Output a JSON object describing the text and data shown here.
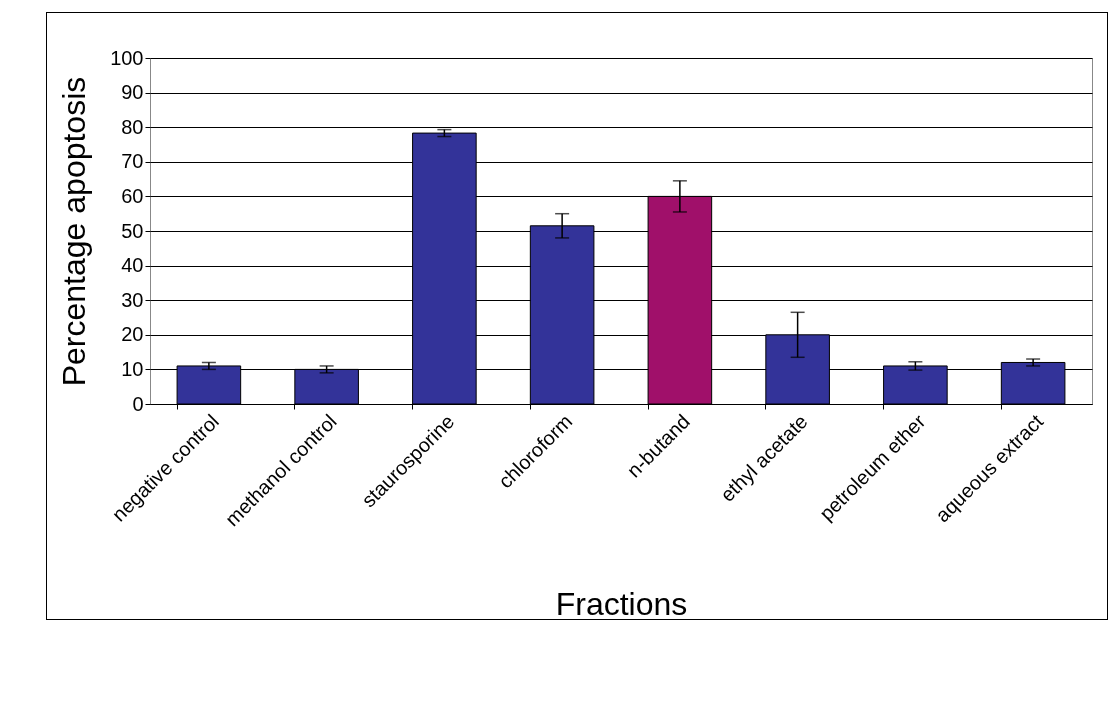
{
  "chart_data": {
    "type": "bar",
    "xlabel": "Fractions",
    "ylabel": "Percentage apoptosis",
    "categories": [
      "negative control",
      "methanol control",
      "staurosporine",
      "chloroform",
      "n-butand",
      "ethyl acetate",
      "petroleum ether",
      "aqueous extract"
    ],
    "values": [
      11,
      10,
      78.3,
      51.5,
      60,
      20,
      11,
      12
    ],
    "errors": [
      1,
      1,
      1,
      3.5,
      4.5,
      6.5,
      1.2,
      1
    ],
    "colors": [
      "#333399",
      "#333399",
      "#333399",
      "#333399",
      "#a0106a",
      "#333399",
      "#333399",
      "#333399"
    ],
    "ylim": [
      0,
      100
    ],
    "yticks": [
      0,
      10,
      20,
      30,
      40,
      50,
      60,
      70,
      80,
      90,
      100
    ],
    "grid": "y"
  }
}
